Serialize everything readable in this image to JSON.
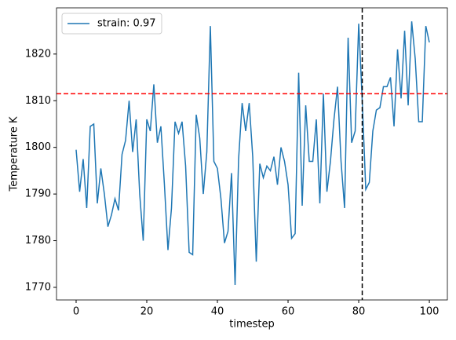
{
  "chart_data": {
    "type": "line",
    "xlabel": "timestep",
    "ylabel": "Temperature K",
    "x": [
      0,
      1,
      2,
      3,
      4,
      5,
      6,
      7,
      8,
      9,
      10,
      11,
      12,
      13,
      14,
      15,
      16,
      17,
      18,
      19,
      20,
      21,
      22,
      23,
      24,
      25,
      26,
      27,
      28,
      29,
      30,
      31,
      32,
      33,
      34,
      35,
      36,
      37,
      38,
      39,
      40,
      41,
      42,
      43,
      44,
      45,
      46,
      47,
      48,
      49,
      50,
      51,
      52,
      53,
      54,
      55,
      56,
      57,
      58,
      59,
      60,
      61,
      62,
      63,
      64,
      65,
      66,
      67,
      68,
      69,
      70,
      71,
      72,
      73,
      74,
      75,
      76,
      77,
      78,
      79,
      80,
      81,
      82,
      83,
      84,
      85,
      86,
      87,
      88,
      89,
      90,
      91,
      92,
      93,
      94,
      95,
      96,
      97,
      98,
      99,
      100
    ],
    "series": [
      {
        "name": "strain: 0.97",
        "color": "#1f77b4",
        "values": [
          1799.5,
          1790.5,
          1797.5,
          1787,
          1804.5,
          1805,
          1788,
          1795.5,
          1790,
          1783,
          1785.5,
          1789,
          1786.5,
          1798.5,
          1801.5,
          1810,
          1799,
          1806,
          1790,
          1780,
          1806,
          1803.5,
          1813.5,
          1801,
          1804.5,
          1792,
          1778,
          1787,
          1805.5,
          1803,
          1805.5,
          1796,
          1777.5,
          1777,
          1807,
          1802,
          1790,
          1799,
          1826,
          1797,
          1795.5,
          1789,
          1779.5,
          1782,
          1794.5,
          1770.5,
          1797.5,
          1809.5,
          1803.5,
          1809.5,
          1798,
          1775.5,
          1796.5,
          1793.5,
          1796,
          1795,
          1798,
          1792,
          1800,
          1797,
          1792,
          1780.5,
          1781.5,
          1816,
          1787.5,
          1809,
          1797,
          1797,
          1806,
          1788,
          1811.5,
          1790.5,
          1797,
          1806,
          1813,
          1797,
          1787,
          1823.5,
          1801,
          1803.5,
          1826.5,
          1810,
          1791,
          1792.5,
          1803.5,
          1808,
          1808.5,
          1813,
          1813,
          1815,
          1804.5,
          1821,
          1810.5,
          1825,
          1809,
          1827,
          1819,
          1805.5,
          1805.5,
          1826,
          1822.5
        ]
      }
    ],
    "hlines": [
      {
        "value": 1811.5,
        "color": "#ff0000"
      }
    ],
    "vlines": [
      {
        "value": 81,
        "color": "#000000"
      }
    ],
    "xlim": [
      -5.55,
      105.1
    ],
    "ylim": [
      1767.3,
      1829.9
    ],
    "xticks": [
      0,
      20,
      40,
      60,
      80,
      100
    ],
    "yticks": [
      1770,
      1780,
      1790,
      1800,
      1810,
      1820
    ],
    "legend": "upper left"
  }
}
